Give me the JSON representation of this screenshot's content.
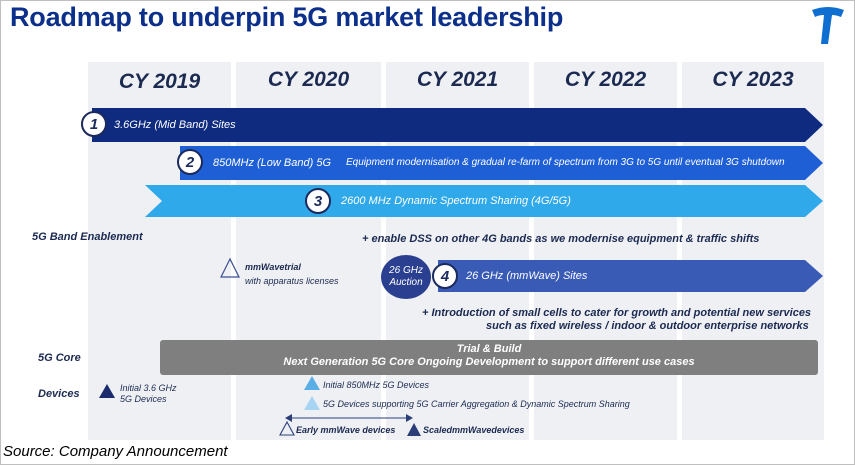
{
  "title": "Roadmap to underpin 5G market leadership",
  "logo_icon": "telstra-logo-icon",
  "colors": {
    "dark_navy": "#0f2b80",
    "mid_blue": "#1f5fd6",
    "light_blue": "#2fa9ea",
    "band_blue": "#3a5bb5",
    "core_gray": "#7f7f7f",
    "title": "#0b2f8a"
  },
  "years": [
    "CY 2019",
    "CY 2020",
    "CY 2021",
    "CY 2022",
    "CY 2023"
  ],
  "rows": {
    "band": "5G Band Enablement",
    "core": "5G Core",
    "devices": "Devices"
  },
  "arrows": [
    {
      "num": "1",
      "label": "3.6GHz (Mid Band) Sites"
    },
    {
      "num": "2",
      "label": "850MHz (Low Band) 5G",
      "detail": "Equipment modernisation & gradual re-farm of spectrum from 3G to 5G until eventual 3G shutdown"
    },
    {
      "num": "3",
      "label": "2600 MHz Dynamic Spectrum Sharing (4G/5G)"
    },
    {
      "num": "4",
      "label": "26 GHz (mmWave)  Sites"
    }
  ],
  "dss_note": "+ enable DSS on other 4G bands as we modernise equipment & traffic shifts",
  "mmwave_trial": {
    "title": "mmWavetrial",
    "sub": "with apparatus licenses"
  },
  "auction": {
    "line1": "26 GHz",
    "line2": "Auction"
  },
  "small_cells": {
    "line1": "+ Introduction of small cells to cater for growth and potential new services",
    "line2": "such as fixed wireless / indoor & outdoor enterprise networks"
  },
  "core_bar": {
    "line1": "Trial & Build",
    "line2": "Next Generation 5G Core   Ongoing Development to support different use cases"
  },
  "devices": {
    "initial_36": {
      "line1": "Initial 3.6 GHz",
      "line2": "5G Devices"
    },
    "initial_850": "Initial 850MHz 5G Devices",
    "ca_dss": "5G Devices supporting 5G Carrier Aggregation & Dynamic Spectrum Sharing",
    "early_mmwave": "Early mmWave devices",
    "scaled_mmwave": "ScaledmmWavedevices"
  },
  "source": "Source: Company Announcement"
}
